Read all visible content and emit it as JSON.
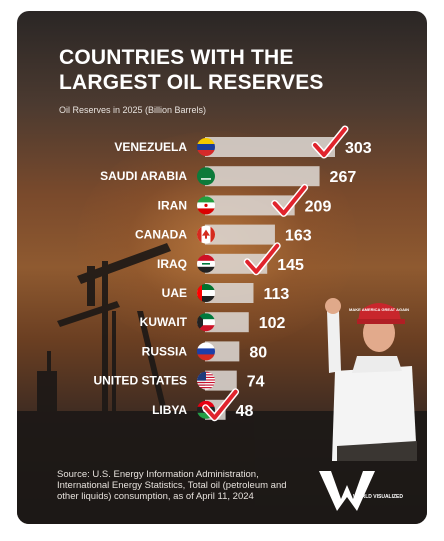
{
  "title": "COUNTRIES WITH THE LARGEST OIL RESERVES",
  "subtitle": "Oil Reserves in 2025 (Billion Barrels)",
  "footer": {
    "source": "Source: U.S. Energy Information Administration, International Energy Statistics, Total oil (petroleum and other liquids) consumption, as of April 11, 2024"
  },
  "logo": {
    "text": "WORLD VISUALIZED"
  },
  "hat_text": "MAKE AMERICA GREAT AGAIN",
  "colors": {
    "bar": "#dcd6d2",
    "check": "#e0242d",
    "text": "#ffffff",
    "hat": "#c8262c"
  },
  "chart_data": {
    "type": "bar",
    "orientation": "horizontal",
    "title": "COUNTRIES WITH THE LARGEST OIL RESERVES",
    "subtitle": "Oil Reserves in 2025 (Billion Barrels)",
    "categories": [
      "VENEZUELA",
      "SAUDI ARABIA",
      "IRAN",
      "CANADA",
      "IRAQ",
      "UAE",
      "KUWAIT",
      "RUSSIA",
      "UNITED STATES",
      "LIBYA"
    ],
    "values": [
      303,
      267,
      209,
      163,
      145,
      113,
      102,
      80,
      74,
      48
    ],
    "value_labels": [
      "303",
      "267",
      "209",
      "163",
      "145",
      "113",
      "102",
      "80",
      "74",
      "48"
    ],
    "flags": [
      "venezuela-flag-icon",
      "saudi-arabia-flag-icon",
      "iran-flag-icon",
      "canada-flag-icon",
      "iraq-flag-icon",
      "uae-flag-icon",
      "kuwait-flag-icon",
      "russia-flag-icon",
      "united-states-flag-icon",
      "libya-flag-icon"
    ],
    "checkmarked": [
      "VENEZUELA",
      "IRAN",
      "IRAQ",
      "LIBYA"
    ],
    "xlim": [
      0,
      303
    ],
    "grid": false,
    "legend": "none"
  }
}
